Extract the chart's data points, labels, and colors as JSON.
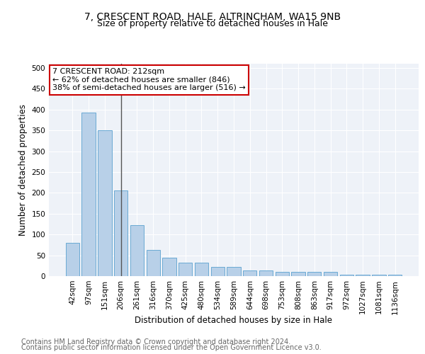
{
  "title1": "7, CRESCENT ROAD, HALE, ALTRINCHAM, WA15 9NB",
  "title2": "Size of property relative to detached houses in Hale",
  "xlabel": "Distribution of detached houses by size in Hale",
  "ylabel": "Number of detached properties",
  "categories": [
    "42sqm",
    "97sqm",
    "151sqm",
    "206sqm",
    "261sqm",
    "316sqm",
    "370sqm",
    "425sqm",
    "480sqm",
    "534sqm",
    "589sqm",
    "644sqm",
    "698sqm",
    "753sqm",
    "808sqm",
    "863sqm",
    "917sqm",
    "972sqm",
    "1027sqm",
    "1081sqm",
    "1136sqm"
  ],
  "values": [
    80,
    393,
    350,
    205,
    122,
    63,
    45,
    33,
    33,
    22,
    22,
    14,
    14,
    10,
    10,
    10,
    10,
    3,
    3,
    3,
    3
  ],
  "bar_color": "#b8d0e8",
  "bar_edge_color": "#6aaad4",
  "annotation_text": "7 CRESCENT ROAD: 212sqm\n← 62% of detached houses are smaller (846)\n38% of semi-detached houses are larger (516) →",
  "annotation_box_facecolor": "#ffffff",
  "annotation_box_edgecolor": "#cc0000",
  "vline_color": "#555555",
  "ylim": [
    0,
    510
  ],
  "yticks": [
    0,
    50,
    100,
    150,
    200,
    250,
    300,
    350,
    400,
    450,
    500
  ],
  "background_color": "#eef2f8",
  "grid_color": "#ffffff",
  "footer1": "Contains HM Land Registry data © Crown copyright and database right 2024.",
  "footer2": "Contains public sector information licensed under the Open Government Licence v3.0.",
  "title1_fontsize": 10,
  "title2_fontsize": 9,
  "axis_label_fontsize": 8.5,
  "tick_fontsize": 7.5,
  "annotation_fontsize": 8,
  "footer_fontsize": 7
}
